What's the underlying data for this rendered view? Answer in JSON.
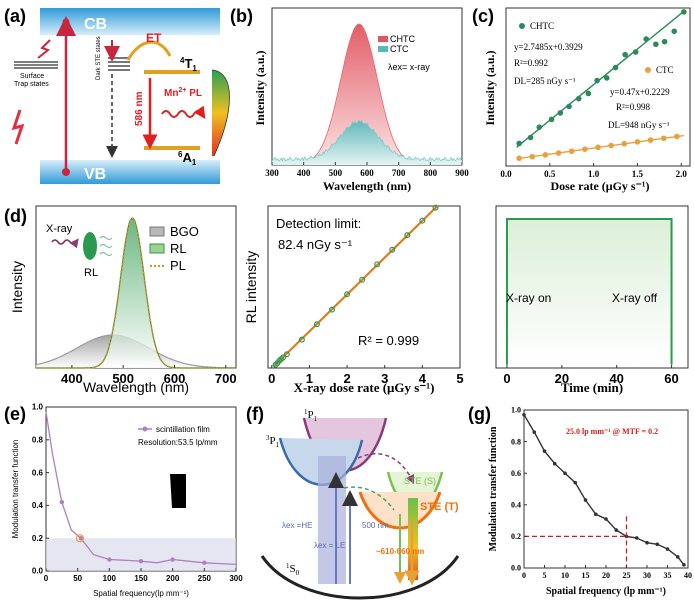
{
  "figure": {
    "panel_labels": [
      "(a)",
      "(b)",
      "(c)",
      "(d)",
      "(e)",
      "(f)",
      "(g)"
    ]
  },
  "panel_a": {
    "cb": "CB",
    "vb": "VB",
    "surface_trap": "Surface\nTrap states",
    "dark_ste": "Dark\nSTE states",
    "et": "ET",
    "t1_main": "4",
    "t1_sup": "T",
    "t1_sub": "1",
    "a1_main": "6",
    "a1_sup": "A",
    "a1_sub": "1",
    "wavelength": "586 nm",
    "mn_pl": "Mn",
    "mn_sup": "2+",
    "mn_pl2": " PL",
    "colors": {
      "cb": "#5ab4e5",
      "vb": "#5ab4e5",
      "arrow": "#c8253f",
      "et": "#e02020",
      "level": "#e0a020"
    }
  },
  "chart_data": [
    {
      "id": "b",
      "type": "area",
      "title": "",
      "xlabel": "Wavelength (nm)",
      "ylabel": "Intensity (a.u.)",
      "xlim": [
        300,
        900
      ],
      "xticks": [
        300,
        400,
        500,
        600,
        700,
        800,
        900
      ],
      "annotation": "λex= x-ray",
      "series": [
        {
          "name": "CHTC",
          "color": "#e7666e",
          "peak_x": 575,
          "peak_y": 1.0,
          "sigma": 58
        },
        {
          "name": "CTC",
          "color": "#7ecbc9",
          "peak_x": 575,
          "peak_y": 0.27,
          "sigma": 60
        }
      ]
    },
    {
      "id": "c",
      "type": "scatter",
      "xlabel": "Dose rate (μGy s⁻¹)",
      "ylabel": "Intensity (a.u.)",
      "xlim": [
        0.0,
        2.1
      ],
      "xticks": [
        0.0,
        0.5,
        1.0,
        1.5,
        2.0
      ],
      "ylim": [
        0,
        6.1
      ],
      "series": [
        {
          "name": "CHTC",
          "color": "#2a8a5a",
          "slope": 2.7485,
          "intercept": 0.3929,
          "x": [
            0.15,
            0.28,
            0.38,
            0.52,
            0.62,
            0.72,
            0.83,
            0.94,
            1.04,
            1.15,
            1.25,
            1.36,
            1.48,
            1.6,
            1.71,
            1.81,
            1.92,
            2.03
          ],
          "y": [
            0.87,
            1.1,
            1.5,
            1.8,
            2.05,
            2.3,
            2.6,
            2.8,
            3.3,
            3.4,
            3.8,
            4.3,
            4.4,
            4.9,
            4.7,
            4.8,
            5.2,
            5.95
          ],
          "equation": "y=2.7485x+0.3929",
          "r2": "R²=0.992",
          "dl": "DL=285 nGy s⁻¹"
        },
        {
          "name": "CTC",
          "color": "#e8a040",
          "slope": 0.47,
          "intercept": 0.2229,
          "x": [
            0.15,
            0.3,
            0.45,
            0.6,
            0.75,
            0.9,
            1.05,
            1.2,
            1.35,
            1.5,
            1.65,
            1.8,
            1.95
          ],
          "y": [
            0.3,
            0.36,
            0.43,
            0.5,
            0.57,
            0.65,
            0.72,
            0.79,
            0.86,
            0.93,
            1.0,
            1.07,
            1.14
          ],
          "equation": "y=0.47x+0.2229",
          "r2": "R²=0.998",
          "dl": "DL=948 nGy s⁻¹"
        }
      ]
    },
    {
      "id": "d1",
      "type": "area",
      "xlabel": "Wavelength (nm)",
      "ylabel": "Intensity",
      "xlim": [
        330,
        720
      ],
      "xticks": [
        400,
        500,
        600,
        700
      ],
      "inset_text": [
        "X-ray",
        "RL"
      ],
      "series": [
        {
          "name": "BGO",
          "color": "#9a9a9a",
          "peak_x": 480,
          "peak_y": 0.22,
          "sigma": 70
        },
        {
          "name": "RL",
          "color": "#2a9a50",
          "peak_x": 518,
          "peak_y": 1.0,
          "sigma": 23
        },
        {
          "name": "PL",
          "color": "#e88a20",
          "peak_x": 518,
          "peak_y": 1.0,
          "sigma": 23
        }
      ]
    },
    {
      "id": "d2",
      "type": "scatter",
      "xlabel": "X-ray dose rate (μGy s⁻¹)",
      "ylabel": "RL intensity",
      "xlim": [
        -0.1,
        5.0
      ],
      "xticks": [
        0,
        1,
        2,
        3,
        4,
        5
      ],
      "ylim": [
        0,
        1.0
      ],
      "x": [
        0.1,
        0.15,
        0.2,
        0.25,
        0.3,
        0.4,
        0.8,
        1.2,
        1.6,
        2.0,
        2.4,
        2.8,
        3.2,
        3.6,
        4.0,
        4.35
      ],
      "y": [
        0.02,
        0.03,
        0.045,
        0.055,
        0.065,
        0.085,
        0.175,
        0.27,
        0.36,
        0.455,
        0.545,
        0.64,
        0.73,
        0.82,
        0.91,
        0.99
      ],
      "fit_color": "#e07a20",
      "point_color": "#2a9a50",
      "detection_label": "Detection limit:",
      "detection_value": "82.4 nGy s⁻¹",
      "r2": "R² = 0.999"
    },
    {
      "id": "d3",
      "type": "line",
      "xlabel": "Time (min)",
      "xlim": [
        -4,
        66
      ],
      "xticks": [
        0,
        20,
        40,
        60
      ],
      "level": 0.92,
      "on_label": "X-ray on",
      "off_label": "X-ray off",
      "color": "#2a9a50"
    },
    {
      "id": "e",
      "type": "line",
      "xlabel": "Spatial frequency(lp mm⁻¹)",
      "ylabel": "Modulation transfer function",
      "xlim": [
        0,
        300
      ],
      "xticks": [
        0,
        50,
        100,
        150,
        200,
        250,
        300
      ],
      "ylim": [
        0,
        1.0
      ],
      "yticks": [
        0.0,
        0.2,
        0.4,
        0.6,
        0.8,
        1.0
      ],
      "x": [
        0,
        10,
        25,
        40,
        55,
        75,
        100,
        125,
        150,
        175,
        200,
        225,
        250,
        275,
        300
      ],
      "y": [
        0.97,
        0.72,
        0.42,
        0.25,
        0.2,
        0.1,
        0.07,
        0.065,
        0.06,
        0.05,
        0.07,
        0.06,
        0.05,
        0.045,
        0.04
      ],
      "marker_x": [
        25,
        55,
        100,
        150,
        200,
        250
      ],
      "marker_y": [
        0.42,
        0.2,
        0.07,
        0.06,
        0.07,
        0.05
      ],
      "legend": "scintillation film",
      "resolution": "Resolution:53.5 lp/mm",
      "color": "#b080c0",
      "highlight": {
        "x": 53.5,
        "y": 0.2
      }
    },
    {
      "id": "g",
      "type": "line",
      "xlabel": "Spatial frequency (lp mm⁻¹)",
      "ylabel": "Modulation transfer function",
      "xlim": [
        0,
        40
      ],
      "xticks": [
        0,
        5,
        10,
        15,
        20,
        25,
        30,
        35,
        40
      ],
      "ylim": [
        0,
        1.0
      ],
      "yticks": [
        0.0,
        0.2,
        0.4,
        0.6,
        0.8,
        1.0
      ],
      "x": [
        0,
        2.5,
        5,
        7.5,
        10,
        12.5,
        15,
        17.5,
        20,
        22.5,
        25,
        27.5,
        30,
        32.5,
        35,
        37.5,
        39
      ],
      "y": [
        0.97,
        0.86,
        0.74,
        0.66,
        0.6,
        0.54,
        0.43,
        0.34,
        0.31,
        0.24,
        0.2,
        0.19,
        0.16,
        0.15,
        0.12,
        0.07,
        0.02
      ],
      "annotation": "25.0 lp mm⁻¹ @ MTF = 0.2",
      "ref": {
        "x": 25,
        "y": 0.2
      },
      "color": "#333333"
    }
  ],
  "panel_f": {
    "p1_main": "1",
    "p1_letter": "P",
    "p1_sub": "1",
    "p3_main": "3",
    "p3_letter": "P",
    "p3_sub": "1",
    "s0_main": "1",
    "s0_letter": "S",
    "s0_sub": "0",
    "ste_s": "STE (S)",
    "ste_t": "STE (T)",
    "he": "λex =HE",
    "le": "λex = LE",
    "nm500": "500 nm",
    "nm610": "~610-660 nm"
  }
}
